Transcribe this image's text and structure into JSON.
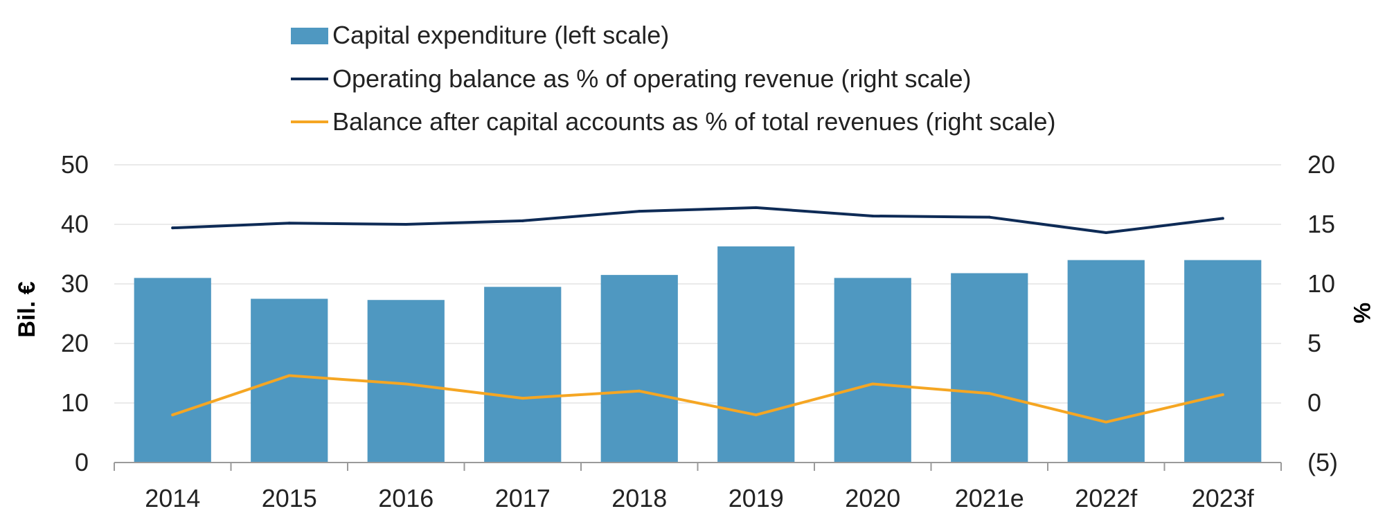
{
  "chart_data": {
    "type": "bar",
    "categories": [
      "2014",
      "2015",
      "2016",
      "2017",
      "2018",
      "2019",
      "2020",
      "2021e",
      "2022f",
      "2023f"
    ],
    "series": [
      {
        "name": "Capital expenditure (left scale)",
        "type": "bar",
        "axis": "left",
        "values": [
          31.0,
          27.5,
          27.3,
          29.5,
          31.5,
          36.3,
          31.0,
          31.8,
          34.0,
          34.0
        ]
      },
      {
        "name": "Operating balance as % of operating revenue (right scale)",
        "type": "line",
        "axis": "right",
        "values": [
          14.7,
          15.1,
          15.0,
          15.3,
          16.1,
          16.4,
          15.7,
          15.6,
          14.3,
          15.5
        ]
      },
      {
        "name": "Balance after capital accounts as % of total revenues (right scale)",
        "type": "line",
        "axis": "right",
        "values": [
          -1.0,
          2.3,
          1.6,
          0.4,
          1.0,
          -1.0,
          1.6,
          0.8,
          -1.6,
          0.7
        ]
      }
    ],
    "ylabel": "Bil. €",
    "y2label": "%",
    "ylim": [
      0,
      50
    ],
    "y2lim": [
      -5,
      20
    ],
    "yticks": [
      "0",
      "10",
      "20",
      "30",
      "40",
      "50"
    ],
    "y2ticks": [
      "(5)",
      "0",
      "5",
      "10",
      "15",
      "20"
    ],
    "grid": true,
    "legend_position": "top",
    "colors": {
      "bar": "#4f98c1",
      "operating_line": "#0e2b56",
      "balance_line": "#f5a623",
      "grid": "#e3e3e3",
      "axis": "#9a9a9a"
    }
  }
}
